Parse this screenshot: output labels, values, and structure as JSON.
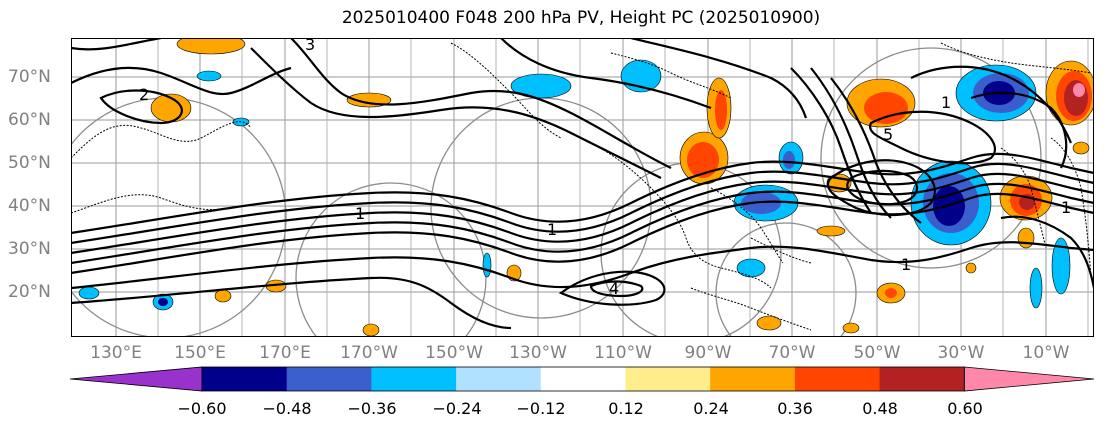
{
  "title": "2025010400 F048 200 hPa PV, Height PC (2025010900)",
  "map": {
    "lat_labels": [
      "70°N",
      "60°N",
      "50°N",
      "40°N",
      "30°N",
      "20°N"
    ],
    "lon_labels": [
      "130°E",
      "150°E",
      "170°E",
      "170°W",
      "150°W",
      "130°W",
      "110°W",
      "90°W",
      "70°W",
      "50°W",
      "30°W",
      "10°W"
    ],
    "contour_labels": [
      "3",
      "1",
      "1",
      "2",
      "4",
      "5",
      "1",
      "1",
      "1"
    ]
  },
  "colorbar": {
    "ticks": [
      "−0.60",
      "−0.48",
      "−0.36",
      "−0.24",
      "−0.12",
      "0.12",
      "0.24",
      "0.36",
      "0.48",
      "0.60"
    ],
    "colors": [
      "#9932cc",
      "#00008b",
      "#3a5fcd",
      "#00bfff",
      "#b0e2ff",
      "#ffffff",
      "#ffec8b",
      "#ffa500",
      "#ff4500",
      "#b22222",
      "#ff88aa"
    ]
  }
}
